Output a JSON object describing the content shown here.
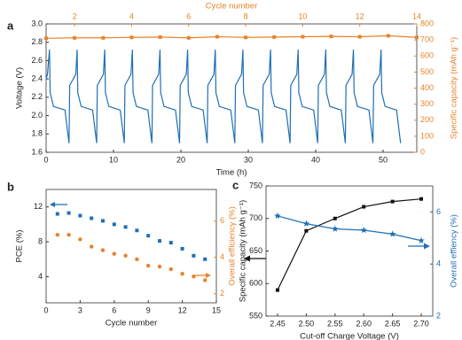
{
  "chart_data": [
    {
      "type": "line",
      "label": "a",
      "xlabel": "Time (h)",
      "ylabel": "Voltage (V)",
      "x2label": "Cycle number",
      "y2label": "Specific capacity (mAh g⁻¹)",
      "xlim": [
        0,
        55
      ],
      "xticks": [
        0,
        10,
        20,
        30,
        40,
        50
      ],
      "x2lim": [
        1,
        14
      ],
      "x2ticks": [
        2,
        4,
        6,
        8,
        10,
        12,
        14
      ],
      "x2color": "#e8822a",
      "ylim": [
        1.6,
        3.0
      ],
      "yticks": [
        1.6,
        1.8,
        {
          "value": 2,
          "label": "2.0"
        },
        2.2,
        2.4,
        2.6,
        2.8,
        {
          "value": 3,
          "label": "3.0"
        }
      ],
      "y2lim": [
        0,
        800
      ],
      "y2ticks": [
        0,
        100,
        200,
        300,
        400,
        500,
        600,
        700,
        800
      ],
      "y2color": "#e8822a",
      "series": [
        {
          "color": "#1f6fb5",
          "marker": "none",
          "x": [
            0,
            0.2,
            0.5,
            0.6,
            1.1,
            2.8,
            3.4,
            3.5,
            4.4,
            4.6,
            4.7,
            5.2,
            6.9,
            7.5,
            7.6,
            8.5,
            8.7,
            8.8,
            9.3,
            11.0,
            11.6,
            11.7,
            12.6,
            12.8,
            12.9,
            13.4,
            15.1,
            15.7,
            15.8,
            16.7,
            16.9,
            17.0,
            17.5,
            19.2,
            19.8,
            19.9,
            20.8,
            21.0,
            21.1,
            21.6,
            23.3,
            23.9,
            24.0,
            24.9,
            25.1,
            25.2,
            25.7,
            27.4,
            28.0,
            28.1,
            29.0,
            29.2,
            29.3,
            29.8,
            31.5,
            32.1,
            32.2,
            33.1,
            33.3,
            33.4,
            33.9,
            35.6,
            36.2,
            36.3,
            37.2,
            37.4,
            37.5,
            38.0,
            39.7,
            40.3,
            40.4,
            41.3,
            41.5,
            41.6,
            42.1,
            43.8,
            44.4,
            44.5,
            45.4,
            45.6,
            45.7,
            46.2,
            47.9,
            48.5,
            48.6,
            49.5,
            49.7,
            49.8,
            50.3,
            52.0,
            52.6
          ],
          "values": [
            2.4,
            2.45,
            2.72,
            2.25,
            2.1,
            2.06,
            1.7,
            2.33,
            2.45,
            2.72,
            2.25,
            2.1,
            2.06,
            1.7,
            2.33,
            2.45,
            2.72,
            2.25,
            2.1,
            2.06,
            1.7,
            2.33,
            2.45,
            2.72,
            2.25,
            2.1,
            2.06,
            1.7,
            2.33,
            2.45,
            2.72,
            2.25,
            2.1,
            2.06,
            1.7,
            2.33,
            2.45,
            2.72,
            2.25,
            2.1,
            2.06,
            1.7,
            2.33,
            2.45,
            2.72,
            2.25,
            2.1,
            2.06,
            1.7,
            2.33,
            2.45,
            2.72,
            2.25,
            2.1,
            2.06,
            1.7,
            2.33,
            2.45,
            2.72,
            2.25,
            2.1,
            2.06,
            1.7,
            2.33,
            2.45,
            2.72,
            2.25,
            2.1,
            2.06,
            1.7,
            2.33,
            2.45,
            2.72,
            2.25,
            2.1,
            2.06,
            1.7,
            2.33,
            2.45,
            2.72,
            2.25,
            2.1,
            2.06,
            1.7,
            2.33,
            2.45,
            2.72,
            2.25,
            2.1,
            2.06,
            1.7
          ]
        },
        {
          "color": "#e8822a",
          "marker": "square",
          "axis": "y2",
          "xaxis": "x2",
          "x": [
            1,
            2,
            3,
            4,
            5,
            6,
            7,
            8,
            9,
            10,
            11,
            12,
            13,
            14
          ],
          "values": [
            710,
            713,
            713,
            716,
            718,
            713,
            720,
            716,
            718,
            720,
            722,
            720,
            726,
            716
          ]
        }
      ]
    },
    {
      "type": "scatter",
      "label": "b",
      "xlabel": "Cycle number",
      "ylabel": "PCE (%)",
      "y2label": "Overall efficiency (%)",
      "xlim": [
        0,
        15
      ],
      "xticks": [
        0,
        3,
        6,
        9,
        12,
        15
      ],
      "ylim": [
        1,
        14
      ],
      "yticks": [
        4,
        8,
        12
      ],
      "y2lim": [
        1.5,
        7.75
      ],
      "y2ticks": [
        2,
        4,
        6
      ],
      "y2color": "#e8822a",
      "series": [
        {
          "color": "#1f6fb5",
          "marker": "square",
          "x": [
            1,
            2,
            3,
            4,
            5,
            6,
            7,
            8,
            9,
            10,
            11,
            12,
            13,
            14
          ],
          "values": [
            11.2,
            11.3,
            11.0,
            10.7,
            10.4,
            10.0,
            9.7,
            9.3,
            8.7,
            8.1,
            7.9,
            7.2,
            6.4,
            6.0
          ]
        },
        {
          "color": "#e8822a",
          "marker": "circle",
          "axis": "y2",
          "x": [
            1,
            2,
            3,
            4,
            5,
            6,
            7,
            8,
            9,
            10,
            11,
            12,
            13,
            14
          ],
          "values": [
            5.25,
            5.25,
            5.0,
            4.6,
            4.4,
            4.2,
            4.1,
            3.9,
            3.55,
            3.5,
            3.35,
            3.1,
            2.95,
            2.75
          ]
        }
      ]
    },
    {
      "type": "line",
      "label": "c",
      "xlabel": "Cut-off Charge Voltage (V)",
      "ylabel": "Specific capacity (mAh g⁻¹)",
      "y2label": "Overall effiency (%)",
      "xlim": [
        2.43,
        2.72
      ],
      "xticks": [
        2.45,
        {
          "value": 2.5,
          "label": "2.50"
        },
        2.55,
        {
          "value": 2.6,
          "label": "2.60"
        },
        2.65,
        {
          "value": 2.7,
          "label": "2.70"
        }
      ],
      "ylim": [
        550,
        750
      ],
      "yticks": [
        550,
        600,
        650,
        700,
        750
      ],
      "y2lim": [
        2,
        7
      ],
      "y2ticks": [
        2,
        4,
        6
      ],
      "y2color": "#1f6fb5",
      "series": [
        {
          "color": "#111111",
          "marker": "square",
          "x": [
            2.45,
            2.5,
            2.55,
            2.6,
            2.65,
            2.7
          ],
          "values": [
            590,
            681,
            700,
            718,
            726,
            730
          ]
        },
        {
          "color": "#1f6fb5",
          "marker": "star",
          "axis": "y2",
          "x": [
            2.45,
            2.5,
            2.55,
            2.6,
            2.65,
            2.7
          ],
          "values": [
            5.85,
            5.55,
            5.35,
            5.3,
            5.15,
            4.9
          ]
        }
      ]
    }
  ]
}
